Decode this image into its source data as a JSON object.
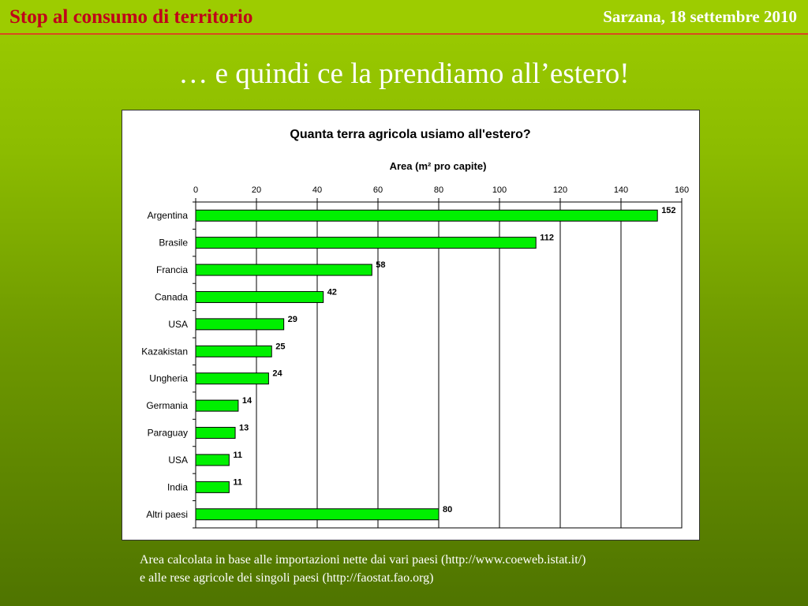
{
  "header": {
    "left_title": "Stop al consumo di territorio",
    "right_title": "Sarzana, 18 settembre 2010"
  },
  "slide": {
    "title": "… e quindi ce la prendiamo all’estero!"
  },
  "footnote": {
    "line1": "Area calcolata in base alle importazioni nette dai vari paesi (http://www.coeweb.istat.it/)",
    "line2": "e alle rese agricole dei singoli paesi (http://faostat.fao.org)"
  },
  "colors": {
    "bar_fill": "#00f000",
    "bar_stroke": "#000000",
    "header_red": "#c0001a"
  },
  "chart_data": {
    "type": "bar",
    "orientation": "horizontal",
    "title": "Quanta terra agricola usiamo all'estero?",
    "xlabel": "Area (m² pro capite)",
    "xlim": [
      0,
      160
    ],
    "x_ticks": [
      0,
      20,
      40,
      60,
      80,
      100,
      120,
      140,
      160
    ],
    "grid": true,
    "categories": [
      "Argentina",
      "Brasile",
      "Francia",
      "Canada",
      "USA",
      "Kazakistan",
      "Ungheria",
      "Germania",
      "Paraguay",
      "USA",
      "India",
      "Altri paesi"
    ],
    "values": [
      152,
      112,
      58,
      42,
      29,
      25,
      24,
      14,
      13,
      11,
      11,
      80
    ]
  }
}
